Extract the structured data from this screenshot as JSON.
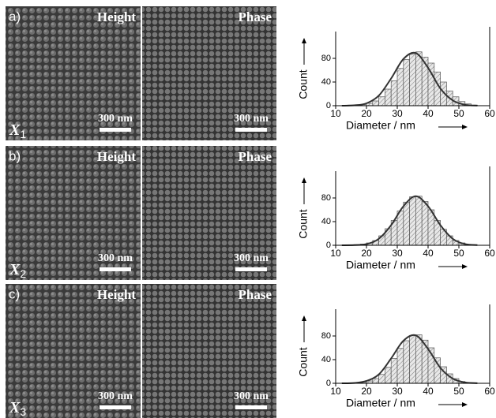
{
  "panels": [
    {
      "label": "a)",
      "left": "Height",
      "right": "Phase",
      "scale": "300 nm",
      "sample": "X",
      "subscript": "1"
    },
    {
      "label": "b)",
      "left": "Height",
      "right": "Phase",
      "scale": "300 nm",
      "sample": "X",
      "subscript": "2"
    },
    {
      "label": "c)",
      "left": "Height",
      "right": "Phase",
      "scale": "300 nm",
      "sample": "X",
      "subscript": "3"
    }
  ],
  "chart_data": [
    {
      "type": "histogram",
      "xlabel": "Diameter / nm",
      "ylabel": "Count",
      "bins": [
        14,
        16,
        18,
        20,
        22,
        24,
        26,
        28,
        30,
        32,
        34,
        36,
        38,
        40,
        42,
        44,
        46,
        48,
        50,
        52,
        54,
        56
      ],
      "values": [
        1,
        1,
        2,
        4,
        8,
        15,
        28,
        42,
        63,
        78,
        87,
        91,
        82,
        72,
        57,
        40,
        25,
        15,
        7,
        3,
        1
      ],
      "fit": {
        "x": [
          12,
          16,
          20,
          24,
          28,
          32,
          36,
          40,
          44,
          48,
          52,
          56
        ],
        "values": [
          0,
          0.6,
          4,
          17,
          46,
          79,
          89,
          64,
          29,
          9,
          1.6,
          0.2
        ]
      },
      "xlim": [
        10,
        60
      ],
      "xticks": [
        10,
        20,
        30,
        40,
        50,
        60
      ],
      "ylim": [
        0,
        120
      ],
      "yticks": [
        0,
        40,
        80
      ]
    },
    {
      "type": "histogram",
      "xlabel": "Diameter / nm",
      "ylabel": "Count",
      "bins": [
        14,
        16,
        18,
        20,
        22,
        24,
        26,
        28,
        30,
        32,
        34,
        36,
        38,
        40,
        42,
        44,
        46,
        48,
        50,
        52,
        54,
        56
      ],
      "values": [
        0,
        1,
        2,
        4,
        8,
        16,
        28,
        42,
        58,
        73,
        82,
        83,
        74,
        60,
        42,
        27,
        16,
        8,
        4,
        1,
        0
      ],
      "fit": {
        "x": [
          12,
          16,
          20,
          24,
          28,
          32,
          36,
          40,
          44,
          48,
          52,
          56
        ],
        "values": [
          0,
          0.3,
          2,
          11,
          34,
          66,
          83,
          66,
          34,
          11,
          2,
          0.3
        ]
      },
      "xlim": [
        10,
        60
      ],
      "xticks": [
        10,
        20,
        30,
        40,
        50,
        60
      ],
      "ylim": [
        0,
        120
      ],
      "yticks": [
        0,
        40,
        80
      ]
    },
    {
      "type": "histogram",
      "xlabel": "Diameter / nm",
      "ylabel": "Count",
      "bins": [
        14,
        16,
        18,
        20,
        22,
        24,
        26,
        28,
        30,
        32,
        34,
        36,
        38,
        40,
        42,
        44,
        46,
        48,
        50,
        52,
        54,
        56
      ],
      "values": [
        0,
        1,
        2,
        4,
        8,
        15,
        27,
        42,
        59,
        72,
        81,
        82,
        73,
        60,
        43,
        28,
        16,
        8,
        3,
        1,
        0
      ],
      "fit": {
        "x": [
          12,
          16,
          20,
          24,
          28,
          32,
          36,
          40,
          44,
          48,
          52,
          56
        ],
        "values": [
          0,
          0.5,
          4,
          15,
          42,
          72,
          81,
          58,
          26,
          8,
          1.5,
          0.2
        ]
      },
      "xlim": [
        10,
        60
      ],
      "xticks": [
        10,
        20,
        30,
        40,
        50,
        60
      ],
      "ylim": [
        0,
        120
      ],
      "yticks": [
        0,
        40,
        80
      ]
    }
  ]
}
